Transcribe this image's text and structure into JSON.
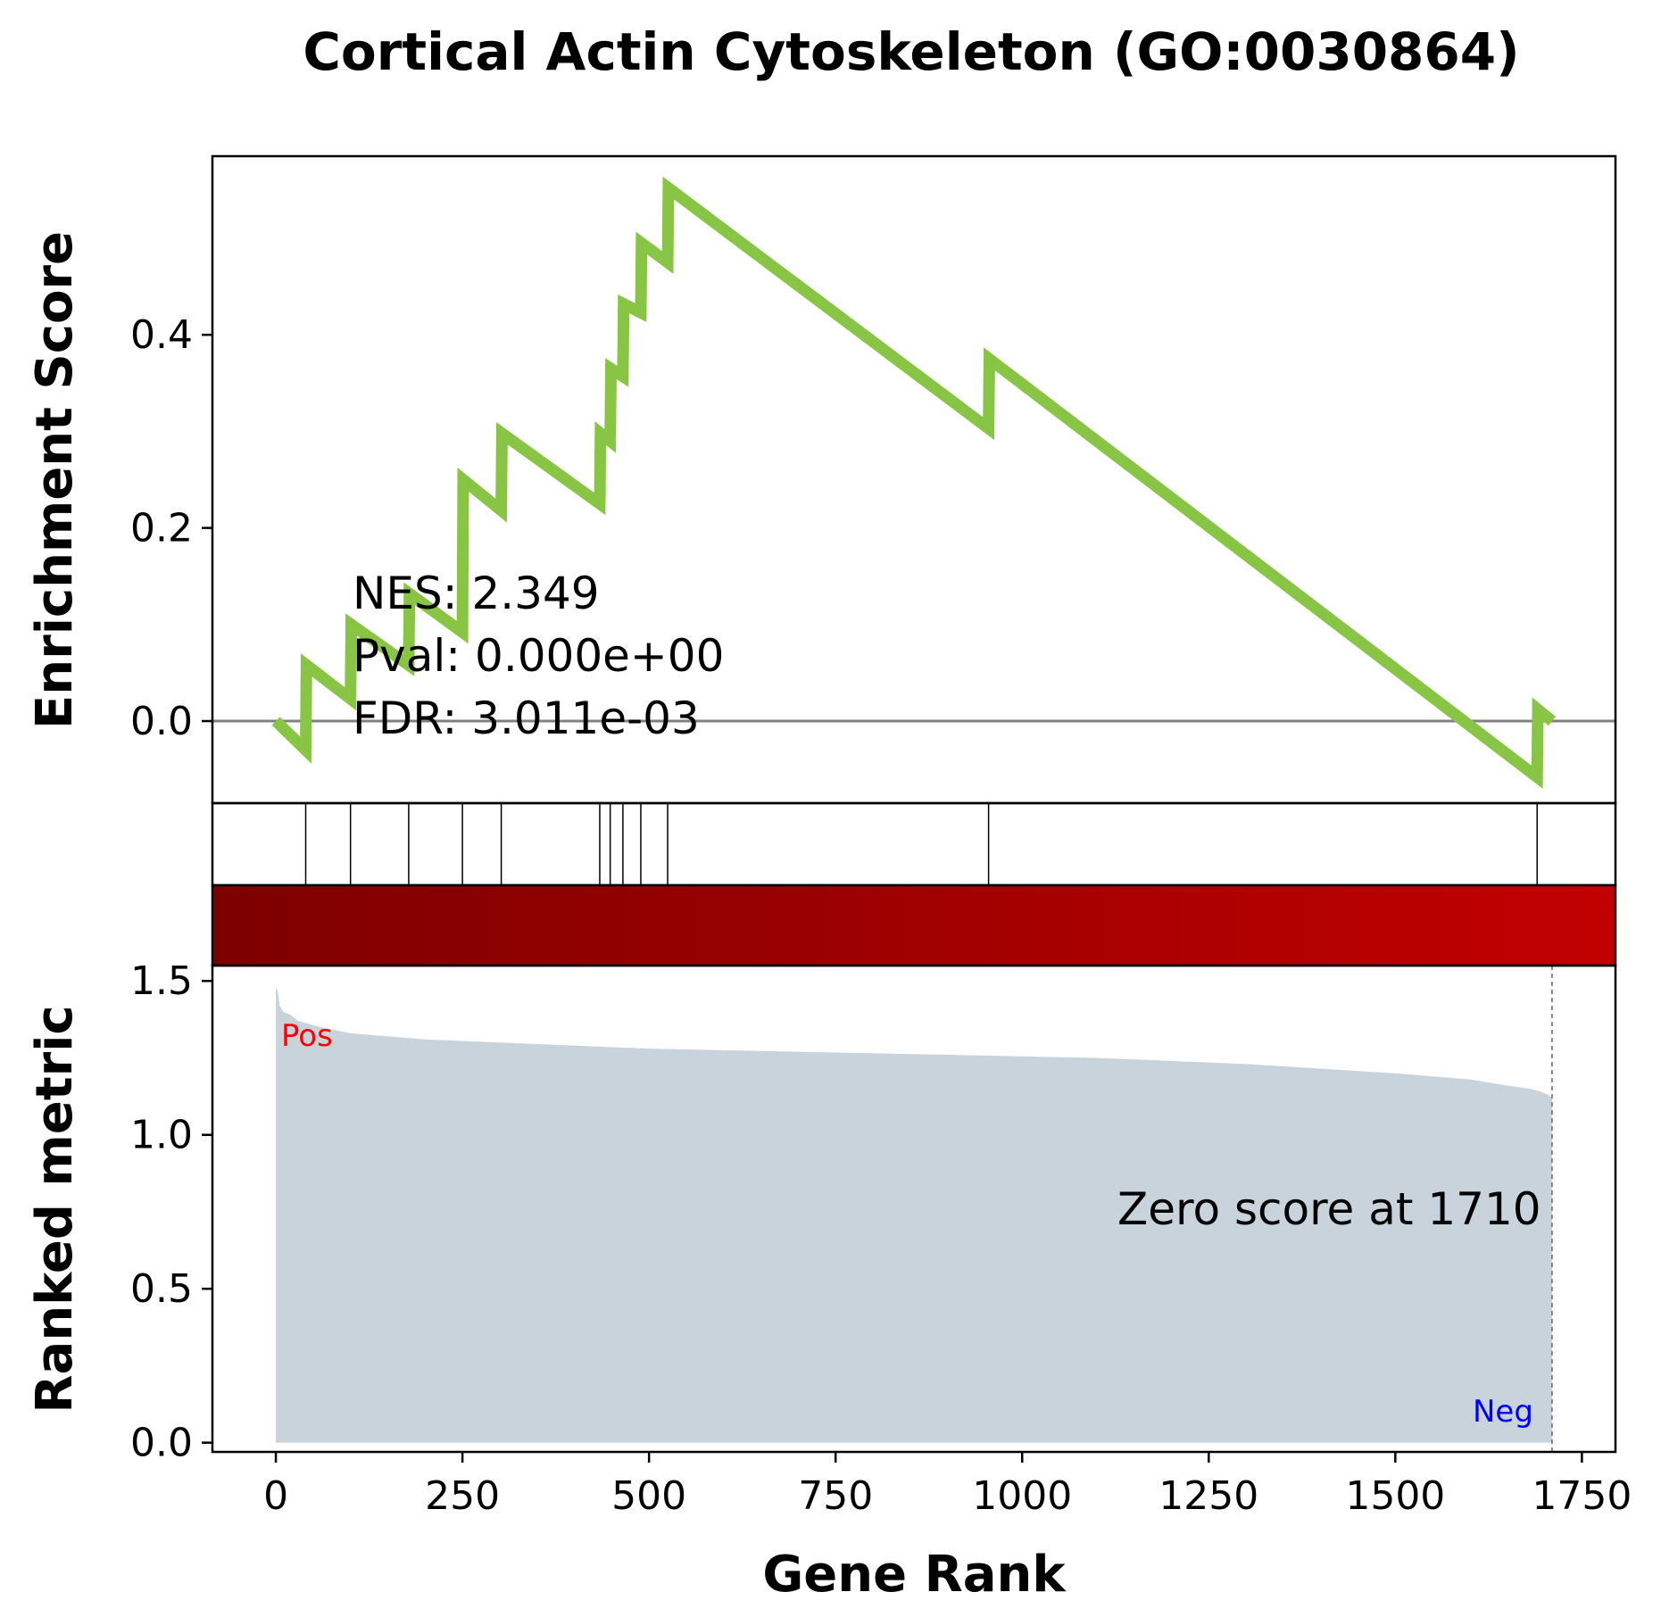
{
  "chart_data": {
    "type": "line",
    "title": "Cortical Actin Cytoskeleton (GO:0030864)",
    "xlabel": "Gene Rank",
    "es_ylabel": "Enrichment Score",
    "metric_ylabel": "Ranked metric",
    "xlim": [
      -85,
      1795
    ],
    "es_ylim": [
      -0.085,
      0.585
    ],
    "metric_ylim": [
      -0.03,
      1.55
    ],
    "x_ticks": [
      0,
      250,
      500,
      750,
      1000,
      1250,
      1500,
      1750
    ],
    "x_tick_labels": [
      "0",
      "250",
      "500",
      "750",
      "1000",
      "1250",
      "1500",
      "1750"
    ],
    "es_ticks": [
      0.0,
      0.2,
      0.4
    ],
    "es_tick_labels": [
      "0.0",
      "0.2",
      "0.4"
    ],
    "metric_ticks": [
      0.0,
      0.5,
      1.0,
      1.5
    ],
    "metric_tick_labels": [
      "0.0",
      "0.5",
      "1.0",
      "1.5"
    ],
    "es_curve": {
      "x": [
        0,
        40,
        41,
        100,
        101,
        178,
        179,
        250,
        251,
        302,
        303,
        434,
        435,
        448,
        449,
        465,
        466,
        489,
        490,
        525,
        526,
        955,
        956,
        1690,
        1691,
        1710
      ],
      "y": [
        0.0,
        -0.03,
        0.058,
        0.023,
        0.1,
        0.058,
        0.132,
        0.092,
        0.25,
        0.218,
        0.298,
        0.225,
        0.298,
        0.29,
        0.365,
        0.357,
        0.432,
        0.423,
        0.495,
        0.475,
        0.552,
        0.303,
        0.375,
        -0.058,
        0.012,
        0.0
      ],
      "color": "#88c544"
    },
    "hit_positions": [
      40,
      100,
      178,
      250,
      302,
      434,
      448,
      465,
      489,
      525,
      955,
      1690
    ],
    "ranked_metric": {
      "x": [
        0,
        3,
        5,
        10,
        20,
        30,
        60,
        100,
        200,
        300,
        500,
        700,
        900,
        1100,
        1300,
        1500,
        1600,
        1650,
        1680,
        1695,
        1705,
        1710
      ],
      "y": [
        1.48,
        1.46,
        1.42,
        1.4,
        1.39,
        1.37,
        1.35,
        1.33,
        1.31,
        1.3,
        1.28,
        1.27,
        1.26,
        1.25,
        1.23,
        1.2,
        1.18,
        1.16,
        1.15,
        1.14,
        1.13,
        1.12
      ],
      "color": "#c8d3dc"
    },
    "colorbar": {
      "from": "#7d0000",
      "to": "#c20000"
    },
    "stats": {
      "nes": "NES: 2.349",
      "pval": "Pval: 0.000e+00",
      "fdr": "FDR: 3.011e-03"
    },
    "zero_score_label": "Zero score at 1710",
    "zero_score_x": 1710,
    "pos_label": "Pos",
    "neg_label": "Neg",
    "pos_color": "#ff0000",
    "neg_color": "#0000ff",
    "baseline_color": "#808080"
  }
}
